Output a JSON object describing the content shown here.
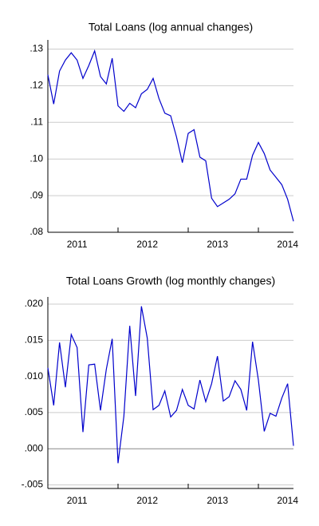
{
  "chart_data": [
    {
      "type": "line",
      "title": "Total Loans (log annual changes)",
      "categories": [
        null,
        null,
        null,
        null,
        null,
        "2011",
        null,
        null,
        null,
        null,
        null,
        null,
        null,
        null,
        null,
        null,
        null,
        "2012",
        null,
        null,
        null,
        null,
        null,
        null,
        null,
        null,
        null,
        null,
        null,
        "2013",
        null,
        null,
        null,
        null,
        null,
        null,
        null,
        null,
        null,
        null,
        null,
        "2014",
        null
      ],
      "series": [
        {
          "name": "Total Loans",
          "color": "#0000cc",
          "values": [
            0.123,
            0.115,
            0.124,
            0.127,
            0.129,
            0.127,
            0.122,
            0.1255,
            0.1295,
            0.1225,
            0.1205,
            0.1275,
            0.1145,
            0.113,
            0.1152,
            0.114,
            0.1178,
            0.119,
            0.122,
            0.1165,
            0.1125,
            0.1118,
            0.106,
            0.099,
            0.107,
            0.108,
            0.1005,
            0.0995,
            0.0893,
            0.087,
            0.088,
            0.089,
            0.0905,
            0.0945,
            0.0945,
            0.101,
            0.1045,
            0.1015,
            0.097,
            0.095,
            0.093,
            0.089,
            0.083
          ]
        }
      ],
      "ylim": [
        0.08,
        0.1325
      ],
      "yticks": [
        {
          "value": 0.08,
          "label": ".08"
        },
        {
          "value": 0.09,
          "label": ".09"
        },
        {
          "value": 0.1,
          "label": ".10"
        },
        {
          "value": 0.11,
          "label": ".11"
        },
        {
          "value": 0.12,
          "label": ".12"
        },
        {
          "value": 0.13,
          "label": ".13"
        }
      ],
      "grid": true
    },
    {
      "type": "line",
      "title": "Total Loans Growth (log monthly changes)",
      "categories": [
        null,
        null,
        null,
        null,
        null,
        "2011",
        null,
        null,
        null,
        null,
        null,
        null,
        null,
        null,
        null,
        null,
        null,
        "2012",
        null,
        null,
        null,
        null,
        null,
        null,
        null,
        null,
        null,
        null,
        null,
        "2013",
        null,
        null,
        null,
        null,
        null,
        null,
        null,
        null,
        null,
        null,
        null,
        "2014",
        null
      ],
      "series": [
        {
          "name": "Total Loans Growth",
          "color": "#0000cc",
          "values": [
            0.0112,
            0.006,
            0.0147,
            0.0085,
            0.0158,
            0.014,
            0.0023,
            0.0116,
            0.0117,
            0.0053,
            0.011,
            0.0152,
            -0.002,
            0.0045,
            0.017,
            0.0073,
            0.0197,
            0.0153,
            0.0054,
            0.006,
            0.008,
            0.0044,
            0.0053,
            0.0082,
            0.006,
            0.0055,
            0.0095,
            0.0065,
            0.009,
            0.0128,
            0.0066,
            0.0072,
            0.0094,
            0.0082,
            0.0053,
            0.0148,
            0.0095,
            0.0024,
            0.0049,
            0.0045,
            0.007,
            0.009,
            0.0004
          ]
        }
      ],
      "ylim": [
        -0.0055,
        0.021
      ],
      "yticks": [
        {
          "value": -0.005,
          "label": "-.005"
        },
        {
          "value": 0,
          "label": ".000"
        },
        {
          "value": 0.005,
          "label": ".005"
        },
        {
          "value": 0.01,
          "label": ".010"
        },
        {
          "value": 0.015,
          "label": ".015"
        },
        {
          "value": 0.02,
          "label": ".020"
        }
      ],
      "grid": true
    }
  ]
}
